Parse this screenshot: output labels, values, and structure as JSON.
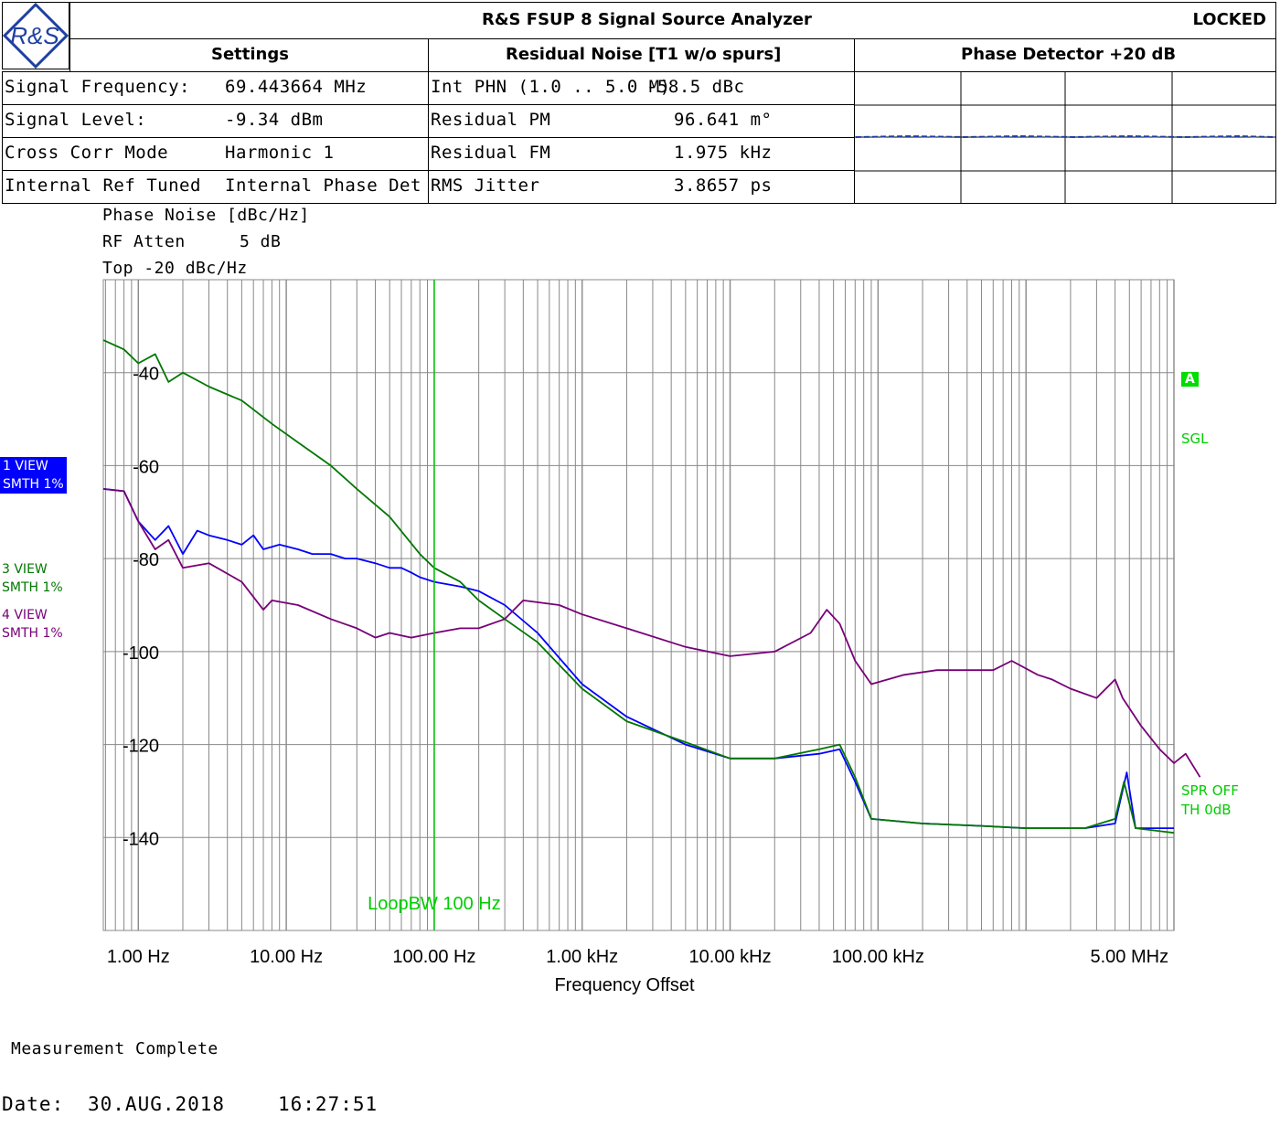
{
  "header": {
    "title": "R&S FSUP 8 Signal Source Analyzer",
    "status": "LOCKED",
    "logo_text": "R&S",
    "settings_heading": "Settings",
    "residual_heading": "Residual Noise [T1 w/o spurs]",
    "detector_heading": "Phase Detector +20 dB"
  },
  "settings": [
    {
      "label": "Signal Frequency:",
      "value": "69.443664 MHz"
    },
    {
      "label": "Signal Level:",
      "value": "-9.34 dBm"
    },
    {
      "label": "Cross Corr Mode",
      "value": "Harmonic 1"
    },
    {
      "label": "Internal Ref Tuned",
      "value": "Internal Phase Det"
    }
  ],
  "residual": [
    {
      "label": "Int PHN (1.0  .. 5.0 M)",
      "value": "-58.5 dBc"
    },
    {
      "label": "Residual PM",
      "value": "96.641 m°"
    },
    {
      "label": "Residual FM",
      "value": "1.975 kHz"
    },
    {
      "label": "RMS Jitter",
      "value": "3.8657 ps"
    }
  ],
  "plot_info": {
    "line1": "Phase Noise [dBc/Hz]",
    "line2_label": "RF Atten",
    "line2_value": "5 dB",
    "line3": "Top  -20 dBc/Hz"
  },
  "traces": [
    {
      "label": "1 VIEW",
      "sub": "SMTH 1%",
      "color": "#0000ff"
    },
    {
      "label": "3 VIEW",
      "sub": "SMTH 1%",
      "color": "#007700"
    },
    {
      "label": "4 VIEW",
      "sub": "SMTH 1%",
      "color": "#770077"
    }
  ],
  "right_labels": {
    "marker_a": "A",
    "sgl": "SGL",
    "spr": "SPR OFF",
    "th": "TH 0dB"
  },
  "status_text": "Measurement Complete",
  "date": {
    "label": "Date:",
    "day": "30.AUG.2018",
    "time": "16:27:51"
  },
  "colors": {
    "trace1": "#0000ff",
    "trace3": "#007700",
    "trace4": "#770077",
    "loop_bw": "#00cc00",
    "grid": "#888888"
  },
  "chart_data": {
    "type": "line",
    "xlabel": "Frequency Offset",
    "ylabel": "Phase Noise [dBc/Hz]",
    "x_scale": "log",
    "xlim": [
      0.58,
      10000000
    ],
    "ylim": [
      -160,
      -20
    ],
    "grid": true,
    "x_tick_labels": [
      {
        "x": 1,
        "label": "1.00 Hz"
      },
      {
        "x": 10,
        "label": "10.00 Hz"
      },
      {
        "x": 100,
        "label": "100.00 Hz"
      },
      {
        "x": 1000,
        "label": "1.00 kHz"
      },
      {
        "x": 10000,
        "label": "10.00 kHz"
      },
      {
        "x": 100000,
        "label": "100.00 kHz"
      },
      {
        "x": 5000000,
        "label": "5.00 MHz"
      }
    ],
    "y_ticks": [
      -40,
      -60,
      -80,
      -100,
      -120,
      -140
    ],
    "annotations": [
      {
        "x": 100,
        "label": "LoopBW 100 Hz"
      }
    ],
    "series": [
      {
        "name": "1 VIEW",
        "color": "#0000ff",
        "points": [
          [
            0.58,
            -65
          ],
          [
            0.8,
            -65.5
          ],
          [
            1,
            -72
          ],
          [
            1.3,
            -76
          ],
          [
            1.6,
            -73
          ],
          [
            2,
            -79
          ],
          [
            2.5,
            -74
          ],
          [
            3,
            -75
          ],
          [
            4,
            -76
          ],
          [
            5,
            -77
          ],
          [
            6,
            -75
          ],
          [
            7,
            -78
          ],
          [
            9,
            -77
          ],
          [
            12,
            -78
          ],
          [
            15,
            -79
          ],
          [
            20,
            -79
          ],
          [
            25,
            -80
          ],
          [
            30,
            -80
          ],
          [
            40,
            -81
          ],
          [
            50,
            -82
          ],
          [
            60,
            -82
          ],
          [
            70,
            -83
          ],
          [
            80,
            -84
          ],
          [
            100,
            -85
          ],
          [
            150,
            -86
          ],
          [
            200,
            -87
          ],
          [
            300,
            -90
          ],
          [
            500,
            -96
          ],
          [
            1000,
            -107
          ],
          [
            2000,
            -114
          ],
          [
            5000,
            -120
          ],
          [
            10000,
            -123
          ],
          [
            20000,
            -123
          ],
          [
            40000,
            -122
          ],
          [
            55000,
            -121
          ],
          [
            70000,
            -128
          ],
          [
            90000,
            -136
          ],
          [
            200000,
            -137
          ],
          [
            500000,
            -137.5
          ],
          [
            1000000,
            -138
          ],
          [
            2500000,
            -138
          ],
          [
            4000000,
            -137
          ],
          [
            4800000,
            -126
          ],
          [
            5500000,
            -138
          ],
          [
            10000000,
            -138
          ]
        ]
      },
      {
        "name": "3 VIEW",
        "color": "#007700",
        "points": [
          [
            0.58,
            -33
          ],
          [
            0.8,
            -35
          ],
          [
            1,
            -38
          ],
          [
            1.3,
            -36
          ],
          [
            1.6,
            -42
          ],
          [
            2,
            -40
          ],
          [
            3,
            -43
          ],
          [
            5,
            -46
          ],
          [
            8,
            -51
          ],
          [
            12,
            -55
          ],
          [
            20,
            -60
          ],
          [
            30,
            -65
          ],
          [
            50,
            -71
          ],
          [
            80,
            -79
          ],
          [
            100,
            -82
          ],
          [
            150,
            -85
          ],
          [
            200,
            -89
          ],
          [
            300,
            -93
          ],
          [
            500,
            -98
          ],
          [
            1000,
            -108
          ],
          [
            2000,
            -115
          ],
          [
            5000,
            -119.5
          ],
          [
            10000,
            -123
          ],
          [
            20000,
            -123
          ],
          [
            40000,
            -121
          ],
          [
            55000,
            -120
          ],
          [
            70000,
            -127
          ],
          [
            90000,
            -136
          ],
          [
            200000,
            -137
          ],
          [
            500000,
            -137.5
          ],
          [
            1000000,
            -138
          ],
          [
            2500000,
            -138
          ],
          [
            4000000,
            -136
          ],
          [
            4600000,
            -128
          ],
          [
            5500000,
            -138
          ],
          [
            10000000,
            -139
          ]
        ]
      },
      {
        "name": "4 VIEW",
        "color": "#770077",
        "points": [
          [
            0.58,
            -65
          ],
          [
            0.8,
            -65.5
          ],
          [
            1,
            -72
          ],
          [
            1.3,
            -78
          ],
          [
            1.6,
            -76
          ],
          [
            2,
            -82
          ],
          [
            3,
            -81
          ],
          [
            5,
            -85
          ],
          [
            7,
            -91
          ],
          [
            8,
            -89
          ],
          [
            12,
            -90
          ],
          [
            20,
            -93
          ],
          [
            30,
            -95
          ],
          [
            40,
            -97
          ],
          [
            50,
            -96
          ],
          [
            70,
            -97
          ],
          [
            100,
            -96
          ],
          [
            150,
            -95
          ],
          [
            200,
            -95
          ],
          [
            300,
            -93
          ],
          [
            400,
            -89
          ],
          [
            700,
            -90
          ],
          [
            1000,
            -92
          ],
          [
            2000,
            -95
          ],
          [
            5000,
            -99
          ],
          [
            10000,
            -101
          ],
          [
            20000,
            -100
          ],
          [
            35000,
            -96
          ],
          [
            45000,
            -91
          ],
          [
            55000,
            -94
          ],
          [
            70000,
            -102
          ],
          [
            90000,
            -107
          ],
          [
            150000,
            -105
          ],
          [
            250000,
            -104
          ],
          [
            600000,
            -104
          ],
          [
            800000,
            -102
          ],
          [
            1200000,
            -105
          ],
          [
            1500000,
            -106
          ],
          [
            2000000,
            -108
          ],
          [
            3000000,
            -110
          ],
          [
            4000000,
            -106
          ],
          [
            4500000,
            -110
          ],
          [
            6000000,
            -116
          ],
          [
            8000000,
            -121
          ],
          [
            10000000,
            -124
          ],
          [
            12000000,
            -122
          ],
          [
            15000000,
            -127
          ]
        ]
      }
    ]
  }
}
